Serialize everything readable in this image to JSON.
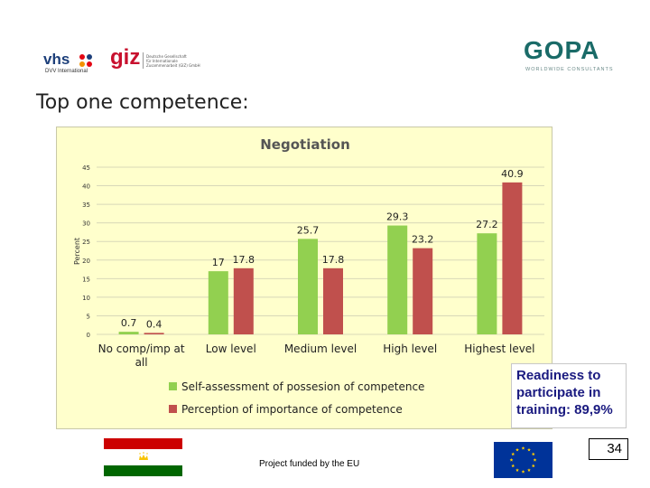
{
  "logos": {
    "vhs_text": "vhs",
    "vhs_sub": "DVV International",
    "giz_text": "giz",
    "giz_sub_line1": "Deutsche Gesellschaft",
    "giz_sub_line2": "für Internationale",
    "giz_sub_line3": "Zusammenarbeit (GIZ) GmbH",
    "gopa_text": "GOPA",
    "gopa_sub": "WORLDWIDE CONSULTANTS"
  },
  "slide_title": "Top one competence:",
  "colors": {
    "self_assessment": "#92d050",
    "perception": "#c0504d",
    "plot_bg": "#ffffcc",
    "note_text": "#1a1a80"
  },
  "chart_data": {
    "type": "bar",
    "title": "Negotiation",
    "ylabel": "Percent",
    "xlabel": "",
    "ylim": [
      0,
      45
    ],
    "yticks": [
      0,
      5,
      10,
      15,
      20,
      25,
      30,
      35,
      40,
      45
    ],
    "grid": true,
    "legend_position": "bottom",
    "categories": [
      "No comp/imp at all",
      "Low level",
      "Medium level",
      "High level",
      "Highest level"
    ],
    "series": [
      {
        "name": "Self-assessment of possesion of competence",
        "values": [
          0.7,
          17,
          25.7,
          29.3,
          27.2
        ],
        "labels": [
          "0.7",
          "17",
          "25.7",
          "29.3",
          "27.2"
        ]
      },
      {
        "name": "Perception of importance of competence",
        "values": [
          0.4,
          17.8,
          17.8,
          23.2,
          40.9
        ],
        "labels": [
          "0.4",
          "17.8",
          "17.8",
          "23.2",
          "40.9"
        ]
      }
    ]
  },
  "note": {
    "line1": "Readiness to",
    "line2": "participate in",
    "line3": "training: 89,9%"
  },
  "page_number": "34",
  "footer_text": "Project funded by the EU"
}
